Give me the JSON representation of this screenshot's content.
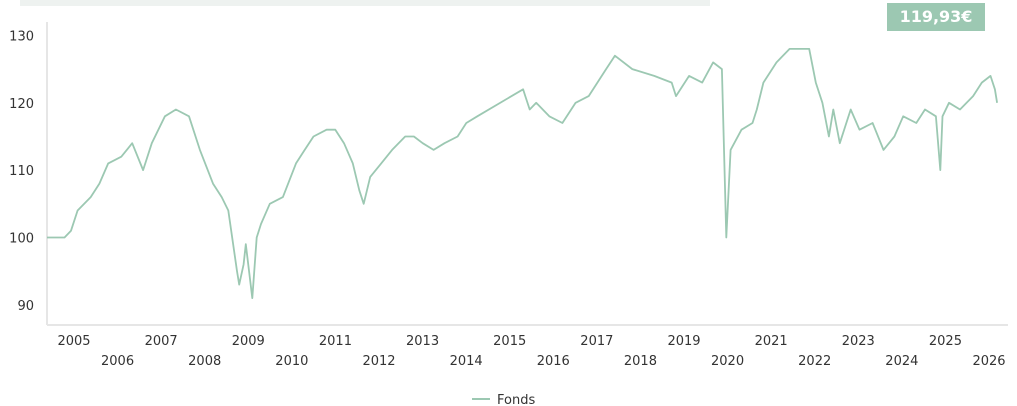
{
  "header": {
    "price_badge": "119,93€"
  },
  "colors": {
    "series": "#9cc8b2",
    "axis": "#e6e6e6",
    "badge_bg": "#9cc8b2",
    "badge_text": "#ffffff"
  },
  "chart_data": {
    "type": "line",
    "title": "",
    "xlabel": "",
    "ylabel": "",
    "xlim": [
      2004.6,
      2026.6
    ],
    "ylim": [
      87,
      132
    ],
    "yticks": [
      90,
      100,
      110,
      120,
      130
    ],
    "xtick_labels": [
      "2005",
      "2006",
      "2007",
      "2008",
      "2009",
      "2010",
      "2011",
      "2012",
      "2013",
      "2014",
      "2015",
      "2016",
      "2017",
      "2018",
      "2019",
      "2020",
      "2021",
      "2022",
      "2023",
      "2024",
      "2025",
      "2026"
    ],
    "grid": false,
    "legend": "bottom-center",
    "series": [
      {
        "name": "Fonds",
        "last_value_label": "119,93€",
        "x": [
          2004.6,
          2005.0,
          2005.15,
          2005.3,
          2005.6,
          2005.8,
          2006.0,
          2006.3,
          2006.55,
          2006.8,
          2007.0,
          2007.3,
          2007.55,
          2007.85,
          2008.1,
          2008.4,
          2008.6,
          2008.75,
          2008.95,
          2009.0,
          2009.1,
          2009.15,
          2009.3,
          2009.4,
          2009.5,
          2009.7,
          2010.0,
          2010.3,
          2010.5,
          2010.7,
          2011.0,
          2011.2,
          2011.4,
          2011.6,
          2011.75,
          2011.85,
          2012.0,
          2012.25,
          2012.5,
          2012.8,
          2013.0,
          2013.2,
          2013.45,
          2013.7,
          2014.0,
          2014.2,
          2014.45,
          2015.5,
          2015.55,
          2015.65,
          2015.8,
          2016.1,
          2016.4,
          2016.7,
          2017.0,
          2017.2,
          2017.4,
          2017.6,
          2018.0,
          2018.5,
          2018.9,
          2019.0,
          2019.3,
          2019.6,
          2019.85,
          2020.05,
          2020.12,
          2020.15,
          2020.25,
          2020.5,
          2020.75,
          2020.85,
          2021.0,
          2021.3,
          2021.6,
          2021.85,
          2022.05,
          2022.2,
          2022.35,
          2022.5,
          2022.6,
          2022.75,
          2023.0,
          2023.2,
          2023.5,
          2023.75,
          2024.0,
          2024.2,
          2024.5,
          2024.7,
          2024.95,
          2025.05,
          2025.1,
          2025.25,
          2025.5,
          2025.8,
          2026.0,
          2026.2,
          2026.3,
          2026.35
        ],
        "values": [
          100,
          100,
          101,
          104,
          106,
          108,
          111,
          112,
          114,
          110,
          114,
          118,
          119,
          118,
          113,
          108,
          106,
          104,
          95,
          93,
          96,
          99,
          91,
          100,
          102,
          105,
          106,
          111,
          113,
          115,
          116,
          116,
          114,
          111,
          107,
          105,
          109,
          111,
          113,
          115,
          115,
          114,
          113,
          114,
          115,
          117,
          118,
          122,
          121,
          119,
          120,
          118,
          117,
          120,
          121,
          123,
          125,
          127,
          125,
          124,
          123,
          121,
          124,
          123,
          126,
          125,
          108,
          100,
          113,
          116,
          117,
          119,
          123,
          126,
          128,
          128,
          128,
          123,
          120,
          115,
          119,
          114,
          119,
          116,
          117,
          113,
          115,
          118,
          117,
          119,
          118,
          110,
          118,
          120,
          119,
          121,
          123,
          124,
          122,
          120
        ]
      }
    ]
  }
}
